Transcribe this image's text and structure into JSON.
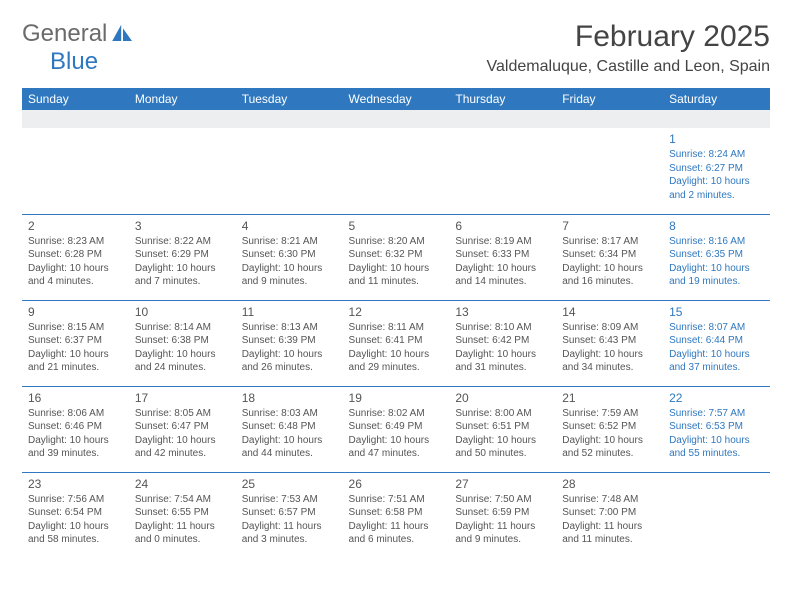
{
  "logo": {
    "line1": "General",
    "line2": "Blue"
  },
  "title": "February 2025",
  "location": "Valdemaluque, Castille and Leon, Spain",
  "colors": {
    "accent": "#2f78bf",
    "header_bg": "#2f78bf",
    "header_text": "#ffffff",
    "body_text": "#555555",
    "saturday_text": "#2f78bf",
    "blank_row_bg": "#eceef0",
    "row_border": "#2f78bf"
  },
  "dayHeaders": [
    "Sunday",
    "Monday",
    "Tuesday",
    "Wednesday",
    "Thursday",
    "Friday",
    "Saturday"
  ],
  "weeks": [
    [
      null,
      null,
      null,
      null,
      null,
      null,
      {
        "n": "1",
        "sr": "8:24 AM",
        "ss": "6:27 PM",
        "dl": "10 hours and 2 minutes."
      }
    ],
    [
      {
        "n": "2",
        "sr": "8:23 AM",
        "ss": "6:28 PM",
        "dl": "10 hours and 4 minutes."
      },
      {
        "n": "3",
        "sr": "8:22 AM",
        "ss": "6:29 PM",
        "dl": "10 hours and 7 minutes."
      },
      {
        "n": "4",
        "sr": "8:21 AM",
        "ss": "6:30 PM",
        "dl": "10 hours and 9 minutes."
      },
      {
        "n": "5",
        "sr": "8:20 AM",
        "ss": "6:32 PM",
        "dl": "10 hours and 11 minutes."
      },
      {
        "n": "6",
        "sr": "8:19 AM",
        "ss": "6:33 PM",
        "dl": "10 hours and 14 minutes."
      },
      {
        "n": "7",
        "sr": "8:17 AM",
        "ss": "6:34 PM",
        "dl": "10 hours and 16 minutes."
      },
      {
        "n": "8",
        "sr": "8:16 AM",
        "ss": "6:35 PM",
        "dl": "10 hours and 19 minutes."
      }
    ],
    [
      {
        "n": "9",
        "sr": "8:15 AM",
        "ss": "6:37 PM",
        "dl": "10 hours and 21 minutes."
      },
      {
        "n": "10",
        "sr": "8:14 AM",
        "ss": "6:38 PM",
        "dl": "10 hours and 24 minutes."
      },
      {
        "n": "11",
        "sr": "8:13 AM",
        "ss": "6:39 PM",
        "dl": "10 hours and 26 minutes."
      },
      {
        "n": "12",
        "sr": "8:11 AM",
        "ss": "6:41 PM",
        "dl": "10 hours and 29 minutes."
      },
      {
        "n": "13",
        "sr": "8:10 AM",
        "ss": "6:42 PM",
        "dl": "10 hours and 31 minutes."
      },
      {
        "n": "14",
        "sr": "8:09 AM",
        "ss": "6:43 PM",
        "dl": "10 hours and 34 minutes."
      },
      {
        "n": "15",
        "sr": "8:07 AM",
        "ss": "6:44 PM",
        "dl": "10 hours and 37 minutes."
      }
    ],
    [
      {
        "n": "16",
        "sr": "8:06 AM",
        "ss": "6:46 PM",
        "dl": "10 hours and 39 minutes."
      },
      {
        "n": "17",
        "sr": "8:05 AM",
        "ss": "6:47 PM",
        "dl": "10 hours and 42 minutes."
      },
      {
        "n": "18",
        "sr": "8:03 AM",
        "ss": "6:48 PM",
        "dl": "10 hours and 44 minutes."
      },
      {
        "n": "19",
        "sr": "8:02 AM",
        "ss": "6:49 PM",
        "dl": "10 hours and 47 minutes."
      },
      {
        "n": "20",
        "sr": "8:00 AM",
        "ss": "6:51 PM",
        "dl": "10 hours and 50 minutes."
      },
      {
        "n": "21",
        "sr": "7:59 AM",
        "ss": "6:52 PM",
        "dl": "10 hours and 52 minutes."
      },
      {
        "n": "22",
        "sr": "7:57 AM",
        "ss": "6:53 PM",
        "dl": "10 hours and 55 minutes."
      }
    ],
    [
      {
        "n": "23",
        "sr": "7:56 AM",
        "ss": "6:54 PM",
        "dl": "10 hours and 58 minutes."
      },
      {
        "n": "24",
        "sr": "7:54 AM",
        "ss": "6:55 PM",
        "dl": "11 hours and 0 minutes."
      },
      {
        "n": "25",
        "sr": "7:53 AM",
        "ss": "6:57 PM",
        "dl": "11 hours and 3 minutes."
      },
      {
        "n": "26",
        "sr": "7:51 AM",
        "ss": "6:58 PM",
        "dl": "11 hours and 6 minutes."
      },
      {
        "n": "27",
        "sr": "7:50 AM",
        "ss": "6:59 PM",
        "dl": "11 hours and 9 minutes."
      },
      {
        "n": "28",
        "sr": "7:48 AM",
        "ss": "7:00 PM",
        "dl": "11 hours and 11 minutes."
      },
      null
    ]
  ],
  "labels": {
    "sunrise": "Sunrise:",
    "sunset": "Sunset:",
    "daylight": "Daylight:"
  }
}
